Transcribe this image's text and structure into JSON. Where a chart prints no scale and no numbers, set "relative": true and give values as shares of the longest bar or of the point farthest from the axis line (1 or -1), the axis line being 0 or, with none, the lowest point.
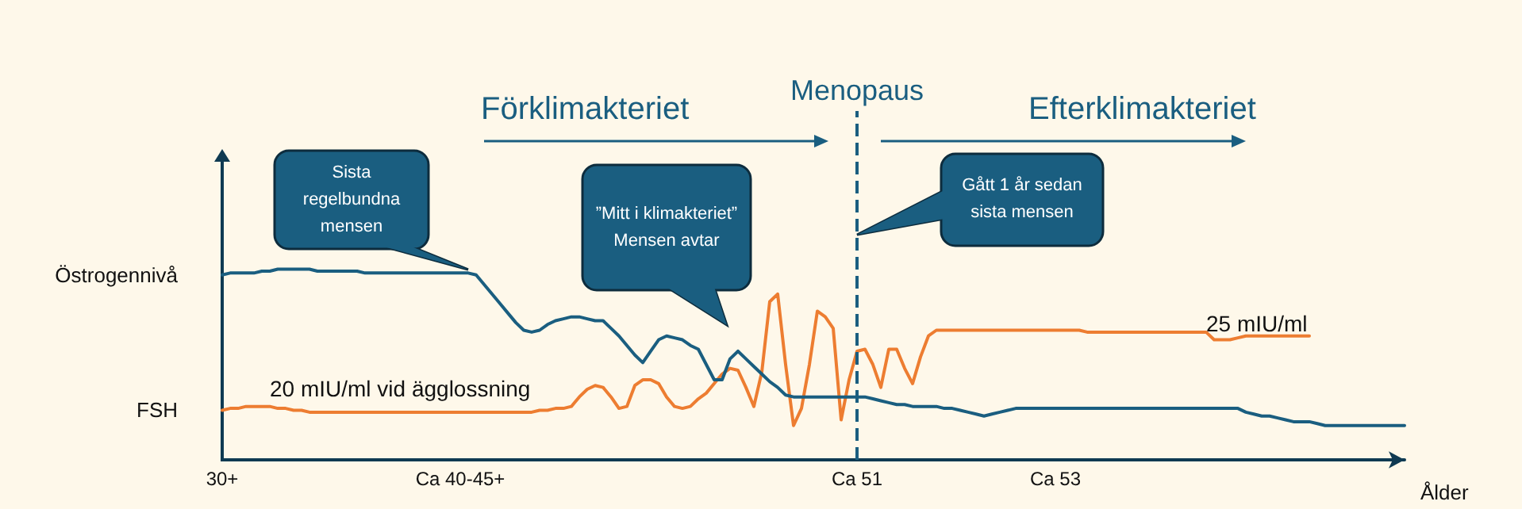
{
  "chart_data": {
    "type": "line",
    "relative": true,
    "xlabel": "Ålder",
    "categories": [
      "30+",
      null,
      null,
      null,
      null,
      null,
      null,
      null,
      null,
      null,
      null,
      null,
      null,
      null,
      null,
      null,
      null,
      null,
      null,
      null,
      null,
      null,
      null,
      null,
      null,
      null,
      null,
      null,
      null,
      null,
      "Ca 40-45+",
      null,
      null,
      null,
      null,
      null,
      null,
      null,
      null,
      null,
      null,
      null,
      null,
      null,
      null,
      null,
      null,
      null,
      null,
      null,
      null,
      null,
      null,
      null,
      null,
      null,
      null,
      null,
      null,
      null,
      null,
      null,
      null,
      null,
      null,
      null,
      null,
      null,
      null,
      null,
      null,
      null,
      null,
      null,
      null,
      null,
      null,
      null,
      null,
      null,
      "Ca 51",
      null,
      null,
      null,
      null,
      null,
      null,
      null,
      null,
      null,
      null,
      null,
      null,
      null,
      null,
      null,
      null,
      null,
      null,
      null,
      null,
      null,
      null,
      null,
      null,
      "Ca 53",
      null,
      null,
      null,
      null,
      null,
      null,
      null,
      null,
      null,
      null,
      null,
      null,
      null,
      null,
      null,
      null,
      null,
      null,
      null,
      null,
      null,
      null,
      null,
      null,
      null,
      null,
      null,
      null,
      null,
      null,
      null,
      null,
      null,
      null,
      null,
      null,
      null,
      null,
      null,
      null,
      null,
      null,
      null,
      null
    ],
    "series": [
      {
        "name": "Östrogennivå",
        "color": "#1a5e80",
        "values": [
          0.97,
          0.98,
          0.98,
          0.98,
          0.98,
          0.99,
          0.99,
          1,
          1,
          1,
          1,
          1,
          0.99,
          0.99,
          0.99,
          0.99,
          0.99,
          0.99,
          0.98,
          0.98,
          0.98,
          0.98,
          0.98,
          0.98,
          0.98,
          0.98,
          0.98,
          0.98,
          0.98,
          0.98,
          0.98,
          0.98,
          0.97,
          0.92,
          0.87,
          0.82,
          0.77,
          0.72,
          0.68,
          0.67,
          0.68,
          0.71,
          0.73,
          0.74,
          0.75,
          0.75,
          0.74,
          0.73,
          0.73,
          0.69,
          0.65,
          0.6,
          0.55,
          0.51,
          0.57,
          0.63,
          0.65,
          0.64,
          0.63,
          0.6,
          0.58,
          0.5,
          0.42,
          0.42,
          0.53,
          0.57,
          0.53,
          0.49,
          0.45,
          0.41,
          0.38,
          0.34,
          0.33,
          0.33,
          0.33,
          0.33,
          0.33,
          0.33,
          0.33,
          0.33,
          0.33,
          0.33,
          0.32,
          0.31,
          0.3,
          0.29,
          0.29,
          0.28,
          0.28,
          0.28,
          0.28,
          0.27,
          0.27,
          0.26,
          0.25,
          0.24,
          0.23,
          0.24,
          0.25,
          0.26,
          0.27,
          0.27,
          0.27,
          0.27,
          0.27,
          0.27,
          0.27,
          0.27,
          0.27,
          0.27,
          0.27,
          0.27,
          0.27,
          0.27,
          0.27,
          0.27,
          0.27,
          0.27,
          0.27,
          0.27,
          0.27,
          0.27,
          0.27,
          0.27,
          0.27,
          0.27,
          0.27,
          0.27,
          0.27,
          0.25,
          0.24,
          0.23,
          0.23,
          0.22,
          0.21,
          0.2,
          0.2,
          0.2,
          0.19,
          0.18,
          0.18,
          0.18,
          0.18,
          0.18,
          0.18,
          0.18,
          0.18,
          0.18,
          0.18,
          0.18
        ]
      },
      {
        "name": "FSH",
        "color": "#ed7d31",
        "values": [
          0.26,
          0.27,
          0.27,
          0.28,
          0.28,
          0.28,
          0.28,
          0.27,
          0.27,
          0.26,
          0.26,
          0.25,
          0.25,
          0.25,
          0.25,
          0.25,
          0.25,
          0.25,
          0.25,
          0.25,
          0.25,
          0.25,
          0.25,
          0.25,
          0.25,
          0.25,
          0.25,
          0.25,
          0.25,
          0.25,
          0.25,
          0.25,
          0.25,
          0.25,
          0.25,
          0.25,
          0.25,
          0.25,
          0.25,
          0.25,
          0.26,
          0.26,
          0.27,
          0.27,
          0.28,
          0.33,
          0.37,
          0.39,
          0.38,
          0.33,
          0.27,
          0.28,
          0.39,
          0.42,
          0.42,
          0.4,
          0.33,
          0.28,
          0.27,
          0.28,
          0.32,
          0.35,
          0.4,
          0.45,
          0.48,
          0.47,
          0.38,
          0.28,
          0.46,
          0.83,
          0.87,
          0.5,
          0.18,
          0.27,
          0.5,
          0.78,
          0.75,
          0.69,
          0.21,
          0.42,
          0.57,
          0.58,
          0.5,
          0.38,
          0.58,
          0.58,
          0.48,
          0.4,
          0.54,
          0.65,
          0.68,
          0.68,
          0.68,
          0.68,
          0.68,
          0.68,
          0.68,
          0.68,
          0.68,
          0.68,
          0.68,
          0.68,
          0.68,
          0.68,
          0.68,
          0.68,
          0.68,
          0.68,
          0.68,
          0.67,
          0.67,
          0.67,
          0.67,
          0.67,
          0.67,
          0.67,
          0.67,
          0.67,
          0.67,
          0.67,
          0.67,
          0.67,
          0.67,
          0.67,
          0.67,
          0.63,
          0.63,
          0.63,
          0.64,
          0.65,
          0.65,
          0.65,
          0.65,
          0.65,
          0.65,
          0.65,
          0.65,
          0.65,
          null,
          null,
          null,
          null,
          null,
          null,
          null,
          null,
          null,
          null,
          null,
          null
        ]
      }
    ],
    "ref_lines": [
      {
        "axis": "x",
        "value": "Ca 51",
        "label": "Menopaus",
        "line_style": "dashed",
        "color": "#1a5e80"
      }
    ],
    "annotations": [
      "Förklimakteriet",
      "Efterklimakteriet",
      "Sista regelbundna mensen",
      "”Mitt i klimakteriet” Mensen avtar",
      "Gått 1 år sedan sista mensen",
      "20 mIU/ml vid ägglossning",
      "25 mIU/ml"
    ],
    "grid": false,
    "legend": false,
    "marker": "none",
    "line_style": "solid"
  }
}
